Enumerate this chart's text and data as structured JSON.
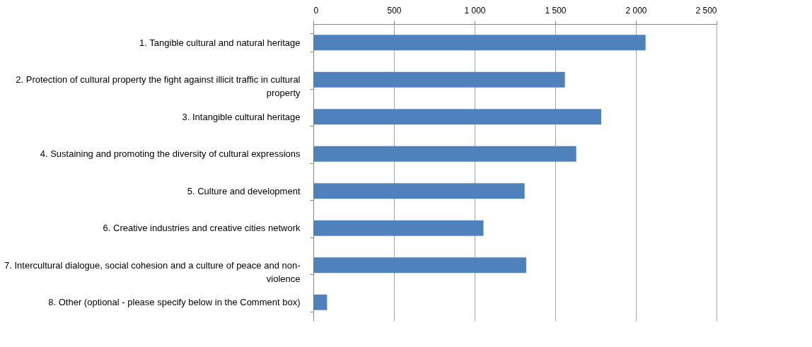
{
  "chart_data": {
    "type": "bar",
    "orientation": "horizontal",
    "categories": [
      "1. Tangible cultural and natural heritage",
      "2. Protection of cultural property the fight against illicit traffic in cultural property",
      "3. Intangible cultural heritage",
      "4. Sustaining and promoting the diversity of cultural expressions",
      "5. Culture and development",
      "6. Creative industries and creative cities network",
      "7. Intercultural dialogue, social cohesion and a culture of peace and non-violence",
      "8. Other (optional - please specify below in the Comment box)"
    ],
    "values": [
      2060,
      1560,
      1785,
      1630,
      1310,
      1055,
      1320,
      85
    ],
    "color": "#4f81bd",
    "xlim": [
      0,
      2500
    ],
    "xticks": [
      0,
      500,
      {
        "value": 1000,
        "label": "1 000"
      },
      {
        "value": 1500,
        "label": "1 500"
      },
      {
        "value": 2000,
        "label": "2 000"
      },
      {
        "value": 2500,
        "label": "2 500"
      }
    ],
    "grid": "x"
  }
}
